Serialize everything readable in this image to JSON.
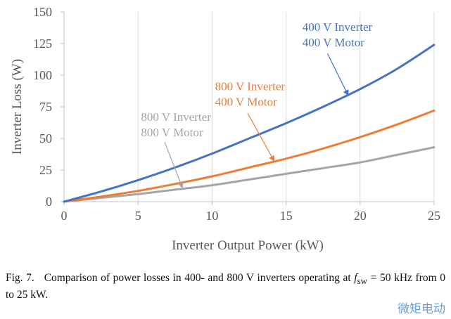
{
  "chart_data": {
    "type": "line",
    "title": "",
    "xlabel": "Inverter Output Power (kW)",
    "ylabel": "Inverter Loss (W)",
    "xlim": [
      0,
      25
    ],
    "ylim": [
      0,
      150
    ],
    "xticks": [
      0,
      5,
      10,
      15,
      20,
      25
    ],
    "yticks": [
      0,
      25,
      50,
      75,
      100,
      125,
      150
    ],
    "grid": "vertical",
    "series": [
      {
        "name": "400 V Inverter 400 V Motor",
        "color": "#4472c4",
        "x": [
          0,
          2.5,
          5,
          7.5,
          10,
          12.5,
          15,
          17.5,
          20,
          22.5,
          25
        ],
        "y": [
          0,
          8,
          17,
          27,
          38,
          50,
          62,
          75,
          89,
          105,
          124
        ]
      },
      {
        "name": "800 V Inverter 400 V Motor",
        "color": "#ed7d31",
        "x": [
          0,
          2.5,
          5,
          7.5,
          10,
          12.5,
          15,
          17.5,
          20,
          22.5,
          25
        ],
        "y": [
          0,
          4,
          8.5,
          14,
          20,
          27,
          34,
          42,
          51,
          61,
          72
        ]
      },
      {
        "name": "800 V Inverter 800 V Motor",
        "color": "#a5a5a5",
        "x": [
          0,
          2.5,
          5,
          7.5,
          10,
          12.5,
          15,
          17.5,
          20,
          22.5,
          25
        ],
        "y": [
          0,
          3,
          6,
          9.5,
          13,
          17.5,
          22,
          26.5,
          31,
          37,
          43
        ]
      }
    ],
    "annotations": [
      {
        "series": 0,
        "line1": "400 V Inverter",
        "line2": "400 V Motor",
        "color": "#4472c4",
        "text_at": [
          16.1,
          135
        ],
        "text_anchor": "start",
        "arrow_from": [
          17.8,
          117
        ],
        "arrow_to": [
          19.2,
          84
        ]
      },
      {
        "series": 1,
        "line1": "800 V Inverter",
        "line2": "400 V Motor",
        "color": "#ed7d31",
        "text_at": [
          10.2,
          88
        ],
        "text_anchor": "start",
        "arrow_from": [
          12.4,
          70
        ],
        "arrow_to": [
          14.2,
          32
        ]
      },
      {
        "series": 2,
        "line1": "800 V Inverter",
        "line2": "800 V Motor",
        "color": "#a5a5a5",
        "text_at": [
          5.2,
          64
        ],
        "text_anchor": "start",
        "arrow_from": [
          6.8,
          47
        ],
        "arrow_to": [
          8.0,
          11
        ]
      }
    ]
  },
  "caption": {
    "label": "Fig. 7.",
    "text_before": "Comparison of power losses in 400- and 800 V inverters operating at",
    "f_sw": "f",
    "f_sub": "sw",
    "text_after": "= 50 kHz from 0 to 25 kW."
  },
  "watermark": "微矩电动"
}
